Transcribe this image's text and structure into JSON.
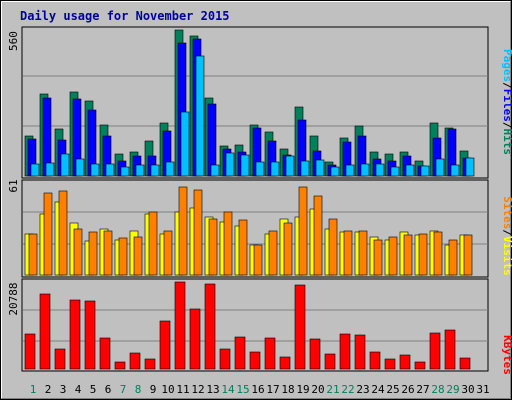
{
  "chart_data": [
    {
      "type": "bar",
      "title": "Daily usage for November 2015",
      "ymax_label": "560",
      "ylim": [
        0,
        560
      ],
      "legend": [
        {
          "label": "Pages",
          "color": "#00c0ff"
        },
        {
          "label": "Files",
          "color": "#0000ff"
        },
        {
          "label": "Hits",
          "color": "#00805c"
        }
      ],
      "separator": "/",
      "categories": [
        "1",
        "2",
        "3",
        "4",
        "5",
        "6",
        "7",
        "8",
        "9",
        "10",
        "11",
        "12",
        "13",
        "14",
        "15",
        "16",
        "17",
        "18",
        "19",
        "20",
        "21",
        "22",
        "23",
        "24",
        "25",
        "26",
        "27",
        "28",
        "29",
        "30",
        "31"
      ],
      "weekend_days": [
        "1",
        "7",
        "8",
        "14",
        "15",
        "21",
        "22",
        "28",
        "29"
      ],
      "series": [
        {
          "name": "Hits",
          "color": "#00805c",
          "values": [
            152,
            313,
            179,
            321,
            286,
            194,
            85,
            91,
            134,
            202,
            556,
            535,
            299,
            113,
            118,
            194,
            169,
            101,
            262,
            151,
            52,
            145,
            191,
            92,
            85,
            91,
            58,
            201,
            184,
            95,
            0
          ]
        },
        {
          "name": "Files",
          "color": "#0000ff",
          "values": [
            142,
            297,
            137,
            294,
            253,
            153,
            58,
            75,
            76,
            173,
            505,
            520,
            275,
            103,
            92,
            182,
            132,
            80,
            214,
            94,
            42,
            131,
            153,
            65,
            56,
            76,
            39,
            145,
            180,
            70,
            0
          ]
        },
        {
          "name": "Pages",
          "color": "#00c0ff",
          "values": [
            44,
            50,
            85,
            63,
            45,
            45,
            33,
            42,
            43,
            52,
            242,
            456,
            40,
            89,
            80,
            53,
            52,
            76,
            58,
            60,
            35,
            41,
            45,
            47,
            34,
            40,
            38,
            65,
            42,
            70,
            0
          ]
        }
      ]
    },
    {
      "type": "bar",
      "ymax_label": "61",
      "ylim": [
        0,
        61
      ],
      "legend": [
        {
          "label": "Sites",
          "color": "#ff8000"
        },
        {
          "label": "Visits",
          "color": "#ffff00"
        }
      ],
      "separator": "/",
      "series": [
        {
          "name": "Visits",
          "color": "#ffff00",
          "values": [
            27,
            40,
            48,
            34,
            22,
            30,
            23,
            29,
            40,
            27,
            41,
            44,
            38,
            35,
            32,
            20,
            27,
            37,
            38,
            43,
            30,
            28,
            28,
            25,
            23,
            28,
            26,
            29,
            20,
            26,
            0
          ]
        },
        {
          "name": "Sites",
          "color": "#ff8000",
          "values": [
            27,
            54,
            55,
            30,
            28,
            29,
            24,
            25,
            41,
            29,
            58,
            56,
            37,
            41,
            36,
            20,
            29,
            34,
            58,
            52,
            37,
            29,
            29,
            23,
            25,
            26,
            27,
            28,
            23,
            26,
            0
          ]
        }
      ]
    },
    {
      "type": "bar",
      "ymax_label": "20788",
      "ylim": [
        0,
        20788
      ],
      "legend": [
        {
          "label": "KBytes",
          "color": "#ff0000"
        }
      ],
      "series": [
        {
          "name": "KBytes",
          "color": "#ff0000",
          "values": [
            8450,
            17960,
            4840,
            16520,
            16130,
            7420,
            1600,
            3800,
            2280,
            11540,
            20690,
            14360,
            20400,
            4880,
            7680,
            4160,
            7510,
            2930,
            20100,
            7260,
            3510,
            8470,
            8080,
            4080,
            2360,
            3430,
            1630,
            8510,
            9350,
            2700,
            0
          ]
        }
      ]
    }
  ]
}
